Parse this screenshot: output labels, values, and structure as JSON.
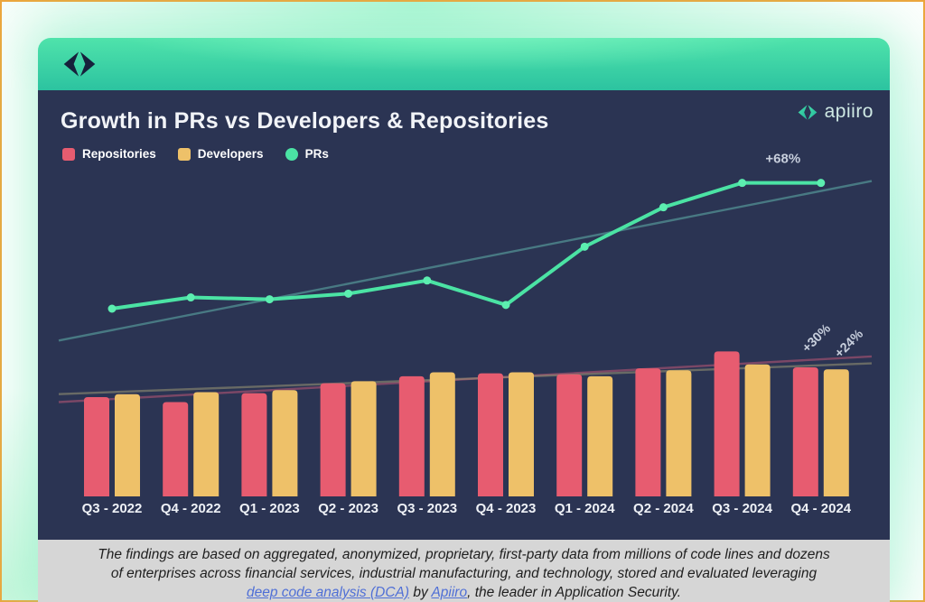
{
  "page": {
    "frame_border_color": "#eda63c"
  },
  "banner": {
    "logo_icon": "apiiro-diamond-mark-dark"
  },
  "chart_header": {
    "title": "Growth in PRs vs Developers & Repositories",
    "brand_logo_text": "apiiro",
    "brand_logo_icon": "apiiro-diamond-mark-teal"
  },
  "chart_data": {
    "type": "combo-bar-line",
    "title": "Growth in PRs vs Developers & Repositories",
    "categories": [
      "Q3 - 2022",
      "Q4 - 2022",
      "Q1 - 2023",
      "Q2 - 2023",
      "Q3 - 2023",
      "Q4 - 2023",
      "Q1 - 2024",
      "Q2 - 2024",
      "Q3 - 2024",
      "Q4 - 2024"
    ],
    "y_axis": {
      "visible": false,
      "unit": "relative growth index (Q3 - 2022 = 100, estimated from bar heights)"
    },
    "legend_position": "top-left",
    "grid": false,
    "series": [
      {
        "name": "Repositories",
        "type": "bar",
        "color": "#e75c70",
        "values": [
          100,
          95,
          104,
          114,
          121,
          124,
          123,
          129,
          146,
          130
        ]
      },
      {
        "name": "Developers",
        "type": "bar",
        "color": "#eec169",
        "values": [
          103,
          105,
          107,
          116,
          125,
          125,
          121,
          127,
          133,
          128
        ]
      },
      {
        "name": "PRs",
        "type": "line",
        "color": "#4be3a4",
        "values": [
          100,
          106,
          105,
          108,
          115,
          102,
          133,
          154,
          167,
          167
        ]
      }
    ],
    "trendlines": [
      {
        "series": "PRs",
        "color": "rgba(96,178,172,0.55)",
        "start_value": 83,
        "end_value": 168
      },
      {
        "series": "Repositories",
        "color": "rgba(190,88,118,0.55)",
        "start_value": 95,
        "end_value": 141
      },
      {
        "series": "Developers",
        "color": "rgba(165,160,120,0.5)",
        "start_value": 103,
        "end_value": 134
      }
    ],
    "annotations": [
      {
        "id": "prs-growth",
        "text": "+68%",
        "rotation": 0
      },
      {
        "id": "repositories-growth",
        "text": "+30%",
        "rotation": -45
      },
      {
        "id": "developers-growth",
        "text": "+24%",
        "rotation": -45
      }
    ]
  },
  "footer": {
    "line1": "The findings are based on aggregated, anonymized, proprietary, first-party data from millions of code lines and dozens",
    "line2": "of enterprises across financial services, industrial manufacturing, and technology, stored and evaluated leveraging",
    "line3_link1": "deep code analysis (DCA)",
    "line3_mid": " by ",
    "line3_link2": "Apiiro",
    "line3_end": ", the leader in Application Security."
  },
  "colors": {
    "panel_bg": "#2b3453",
    "banner_teal": "#2fc7a1",
    "footer_bg": "#d6d6d6",
    "link_blue": "#4f6fd6",
    "annotation_text": "#c7cedc"
  }
}
